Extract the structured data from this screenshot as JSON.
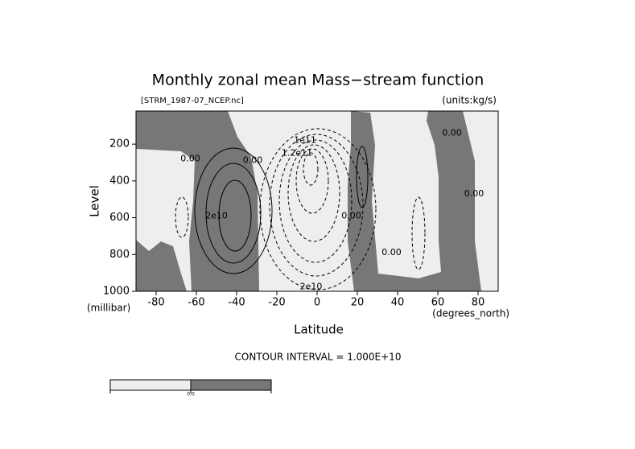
{
  "chart_data": {
    "type": "contour",
    "title": "Monthly zonal mean Mass−stream function",
    "subtitle": "[STRM_1987-07_NCEP.nc]",
    "units_label": "(units:kg/s)",
    "xlabel": "Latitude",
    "x_units": "(degrees_north)",
    "ylabel": "Level",
    "y_units": "(millibar)",
    "xlim": [
      -90,
      90
    ],
    "xticks": [
      -80,
      -60,
      -40,
      -20,
      0,
      20,
      40,
      60,
      80
    ],
    "ylim": [
      1000,
      20
    ],
    "yticks": [
      200,
      400,
      600,
      800,
      1000
    ],
    "contour_interval": "CONTOUR INTERVAL = 1.000E+10",
    "contour_labels": [
      {
        "text": "0.00",
        "x": -63,
        "y": 280
      },
      {
        "text": "0.00",
        "x": -32,
        "y": 290
      },
      {
        "text": "2e10",
        "x": -50,
        "y": 590
      },
      {
        "text": "1e11",
        "x": -6,
        "y": 180
      },
      {
        "text": "1.2e11",
        "x": -10,
        "y": 250
      },
      {
        "text": "0.00",
        "x": 17,
        "y": 590
      },
      {
        "text": "0.00",
        "x": 37,
        "y": 790
      },
      {
        "text": "0.00",
        "x": 67,
        "y": 140
      },
      {
        "text": "0.00",
        "x": 78,
        "y": 470
      },
      {
        "text": "2e10",
        "x": -3,
        "y": 975
      }
    ],
    "colorbar": {
      "colors": [
        "#eeeeee",
        "#777777"
      ],
      "label": "0.0"
    }
  }
}
